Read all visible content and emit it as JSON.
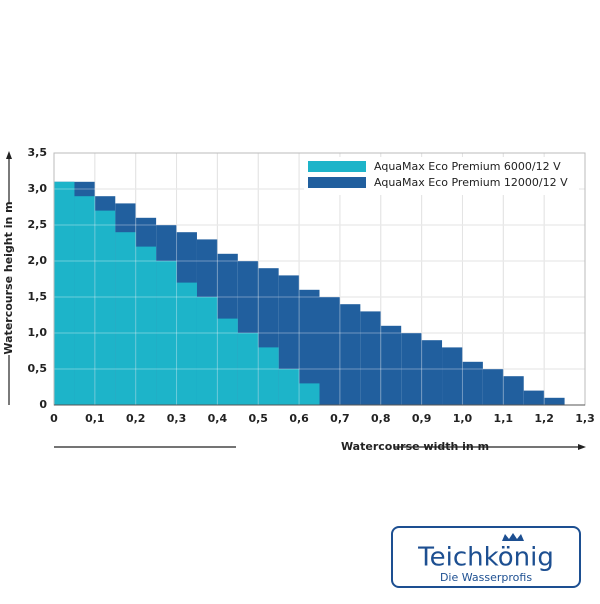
{
  "chart_data": {
    "type": "histogram",
    "xlabel": "Watercourse width in m",
    "ylabel": "Watercourse height in m",
    "xlim": [
      0,
      1.3
    ],
    "ylim": [
      0,
      3.5
    ],
    "xticks": [
      0,
      {
        "value": 0.1,
        "label": "0,1"
      },
      {
        "value": 0.2,
        "label": "0,2"
      },
      {
        "value": 0.3,
        "label": "0,3"
      },
      {
        "value": 0.4,
        "label": "0,4"
      },
      {
        "value": 0.5,
        "label": "0,5"
      },
      {
        "value": 0.6,
        "label": "0,6"
      },
      {
        "value": 0.7,
        "label": "0,7"
      },
      {
        "value": 0.8,
        "label": "0,8"
      },
      {
        "value": 0.9,
        "label": "0,9"
      },
      {
        "value": 1.0,
        "label": "1,0"
      },
      {
        "value": 1.1,
        "label": "1,1"
      },
      {
        "value": 1.2,
        "label": "1,2"
      },
      {
        "value": 1.3,
        "label": "1,3"
      }
    ],
    "yticks": [
      0,
      {
        "value": 0.5,
        "label": "0,5"
      },
      {
        "value": 1.0,
        "label": "1,0"
      },
      {
        "value": 1.5,
        "label": "1,5"
      },
      {
        "value": 2.0,
        "label": "2,0"
      },
      {
        "value": 2.5,
        "label": "2,5"
      },
      {
        "value": 3.0,
        "label": "3,0"
      },
      {
        "value": 3.5,
        "label": "3,5"
      }
    ],
    "grid": true,
    "legend": "upper right",
    "series": [
      {
        "name": "AquaMax Eco Premium 6000/12 V",
        "color": "#1db4c9",
        "bins": [
          0,
          0.05,
          0.1,
          0.15,
          0.2,
          0.25,
          0.3,
          0.35,
          0.4,
          0.45,
          0.5,
          0.55,
          0.6,
          0.65
        ],
        "values": [
          3.1,
          2.9,
          2.7,
          2.4,
          2.2,
          2.0,
          1.7,
          1.5,
          1.2,
          1.0,
          0.8,
          0.5,
          0.3
        ]
      },
      {
        "name": "AquaMax Eco Premium 12000/12 V",
        "color": "#215f9e",
        "bins": [
          0,
          0.05,
          0.1,
          0.15,
          0.2,
          0.25,
          0.3,
          0.35,
          0.4,
          0.45,
          0.5,
          0.55,
          0.6,
          0.65,
          0.7,
          0.75,
          0.8,
          0.85,
          0.9,
          0.95,
          1.0,
          1.05,
          1.1,
          1.15,
          1.2,
          1.25
        ],
        "values": [
          3.1,
          3.1,
          2.9,
          2.8,
          2.6,
          2.5,
          2.4,
          2.3,
          2.1,
          2.0,
          1.9,
          1.8,
          1.6,
          1.5,
          1.4,
          1.3,
          1.1,
          1.0,
          0.9,
          0.8,
          0.6,
          0.5,
          0.4,
          0.2,
          0.1
        ]
      }
    ]
  },
  "logo": {
    "brand": "Teichkönig",
    "tagline": "Die Wasserprofis"
  }
}
